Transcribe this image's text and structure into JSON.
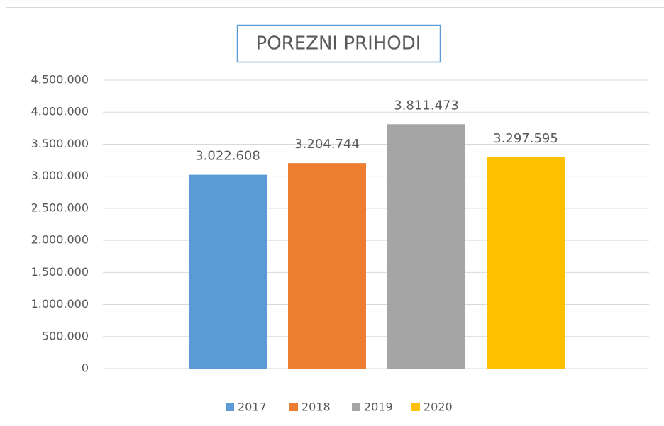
{
  "chart_data": {
    "type": "bar",
    "title": "POREZNI PRIHODI",
    "series": [
      {
        "name": "2017",
        "color": "#5b9bd5",
        "values": [
          3022608
        ],
        "value_labels": [
          "3.022.608"
        ]
      },
      {
        "name": "2018",
        "color": "#ed7d31",
        "values": [
          3204744
        ],
        "value_labels": [
          "3.204.744"
        ]
      },
      {
        "name": "2019",
        "color": "#a5a5a5",
        "values": [
          3811473
        ],
        "value_labels": [
          "3.811.473"
        ]
      },
      {
        "name": "2020",
        "color": "#ffc000",
        "values": [
          3297595
        ],
        "value_labels": [
          "3.297.595"
        ]
      }
    ],
    "ylim": [
      0,
      4500000
    ],
    "yticks": [
      0,
      {
        "value": 500000,
        "label": "500.000"
      },
      {
        "value": 1000000,
        "label": "1.000.000"
      },
      {
        "value": 1500000,
        "label": "1.500.000"
      },
      {
        "value": 2000000,
        "label": "2.000.000"
      },
      {
        "value": 2500000,
        "label": "2.500.000"
      },
      {
        "value": 3000000,
        "label": "3.000.000"
      },
      {
        "value": 3500000,
        "label": "3.500.000"
      },
      {
        "value": 4000000,
        "label": "4.000.000"
      },
      {
        "value": 4500000,
        "label": "4.500.000"
      }
    ],
    "grid": true,
    "legend": "bottom"
  }
}
